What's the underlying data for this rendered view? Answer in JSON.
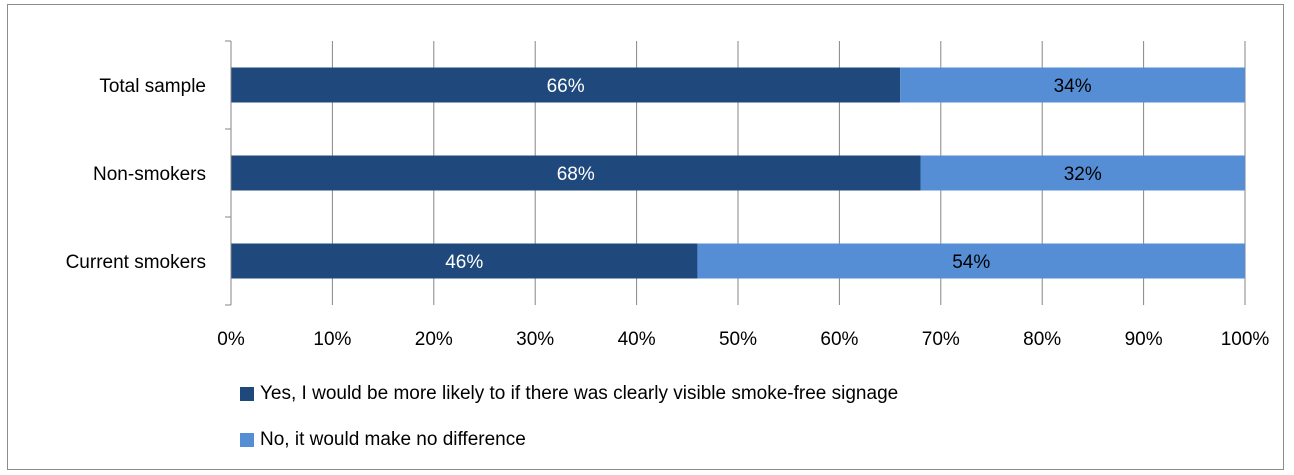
{
  "chart_data": {
    "type": "bar",
    "orientation": "horizontal",
    "stacked": true,
    "percent_stacked": true,
    "categories": [
      "Total sample",
      "Non-smokers",
      "Current smokers"
    ],
    "series": [
      {
        "name": "Yes, I would be more likely to if there was clearly visible smoke-free signage",
        "values": [
          66,
          68,
          46
        ],
        "labels": [
          "66%",
          "68%",
          "46%"
        ],
        "color": "#1f497d"
      },
      {
        "name": "No, it would make no difference",
        "values": [
          34,
          32,
          54
        ],
        "labels": [
          "34%",
          "32%",
          "54%"
        ],
        "color": "#558ed5"
      }
    ],
    "xlim": [
      0,
      100
    ],
    "x_ticks": [
      "0%",
      "10%",
      "20%",
      "30%",
      "40%",
      "50%",
      "60%",
      "70%",
      "80%",
      "90%",
      "100%"
    ],
    "grid": "vertical",
    "legend_position": "bottom",
    "colors": {
      "gridline": "#868686",
      "data_label_dark": "#ffffff",
      "data_label_light": "#000000"
    }
  }
}
